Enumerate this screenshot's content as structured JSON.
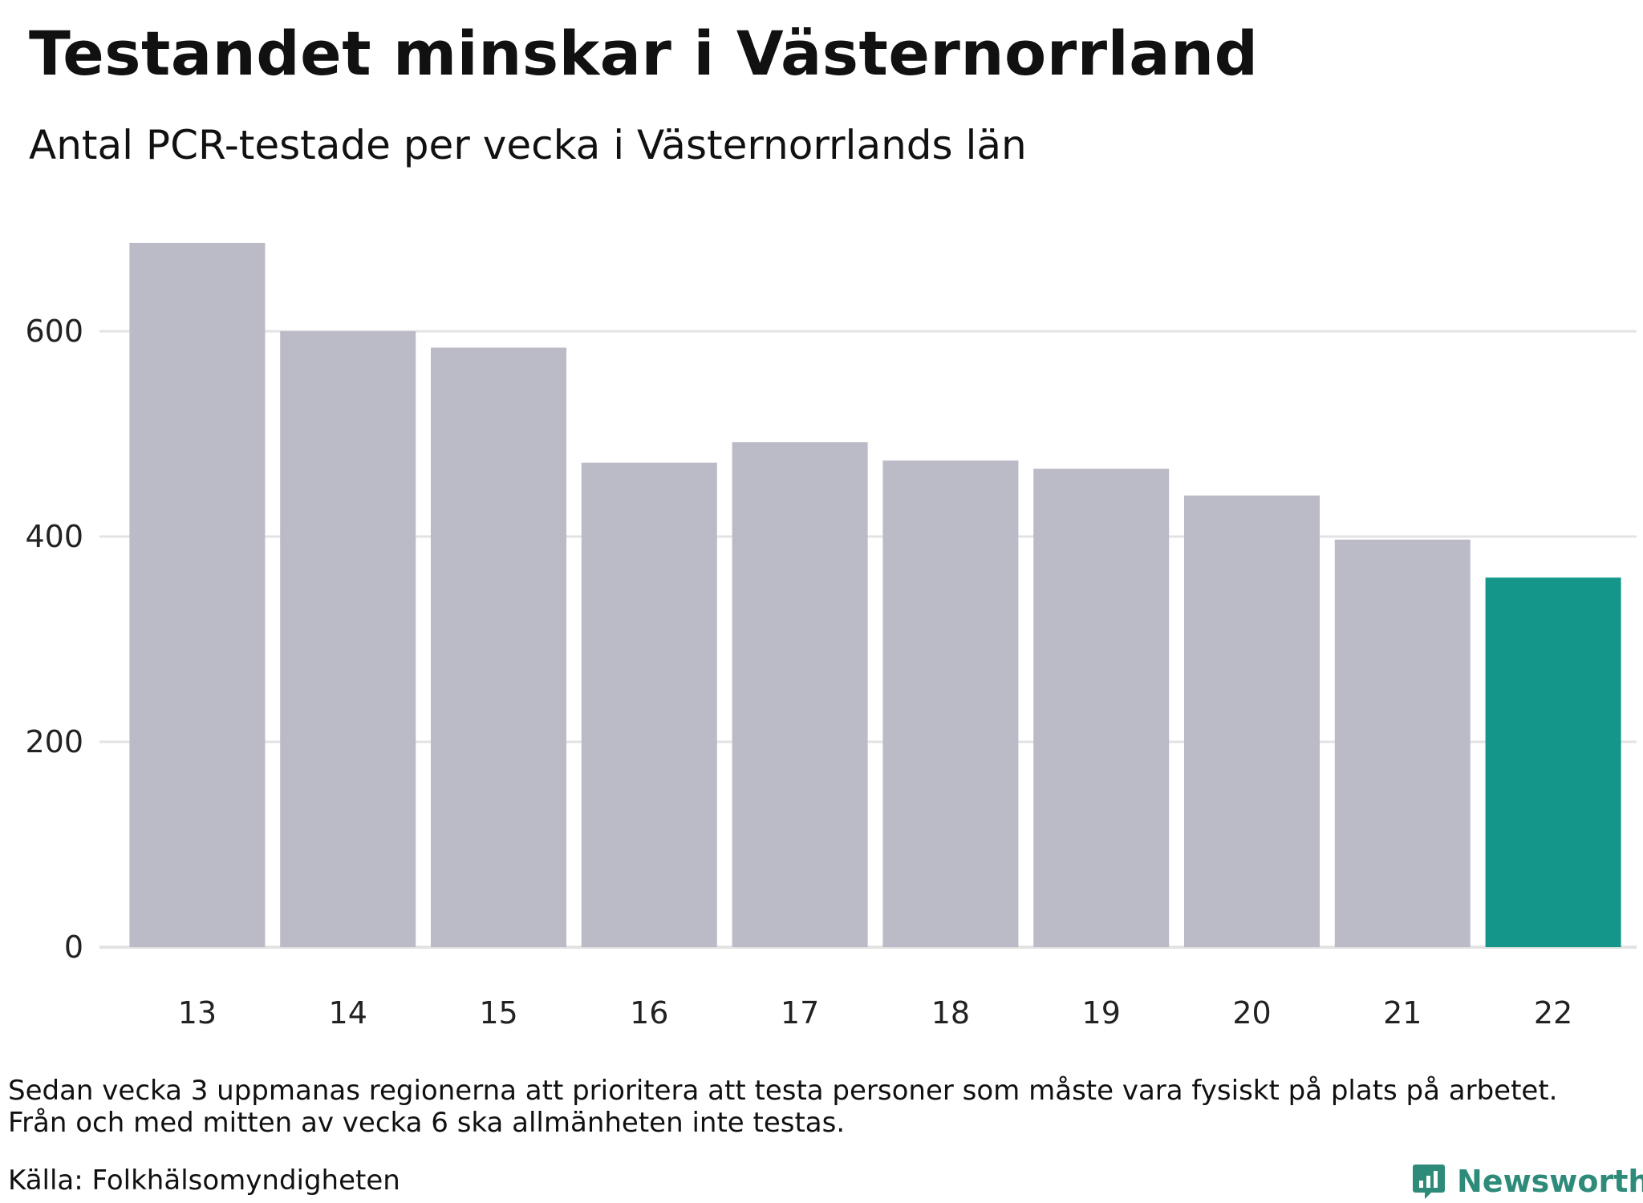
{
  "header": {
    "title": "Testandet minskar i Västernorrland",
    "subtitle": "Antal PCR-testade per vecka i Västernorrlands län"
  },
  "footer": {
    "note_line1": "Sedan vecka 3 uppmanas regionerna att prioritera att testa personer som måste vara fysiskt på plats på arbetet.",
    "note_line2": "Från och med mitten av vecka 6 ska allmänheten inte testas.",
    "source": "Källa: Folkhälsomyndigheten",
    "brand": "Newsworthy",
    "brand_icon": "bar-chart-speech-bubble-icon"
  },
  "colors": {
    "bar_default": "#bbbac7",
    "bar_highlight": "#14978a",
    "grid": "#e3e3e3",
    "brand": "#2e8b7a"
  },
  "chart_data": {
    "type": "bar",
    "title": "Testandet minskar i Västernorrland",
    "subtitle": "Antal PCR-testade per vecka i Västernorrlands län",
    "xlabel": "",
    "ylabel": "",
    "categories": [
      "13",
      "14",
      "15",
      "16",
      "17",
      "18",
      "19",
      "20",
      "21",
      "22"
    ],
    "values": [
      686,
      600,
      584,
      472,
      492,
      474,
      466,
      440,
      397,
      360
    ],
    "highlight_index": 9,
    "ylim": [
      0,
      700
    ],
    "yticks": [
      0,
      200,
      400,
      600
    ],
    "grid": true,
    "legend": "none"
  }
}
